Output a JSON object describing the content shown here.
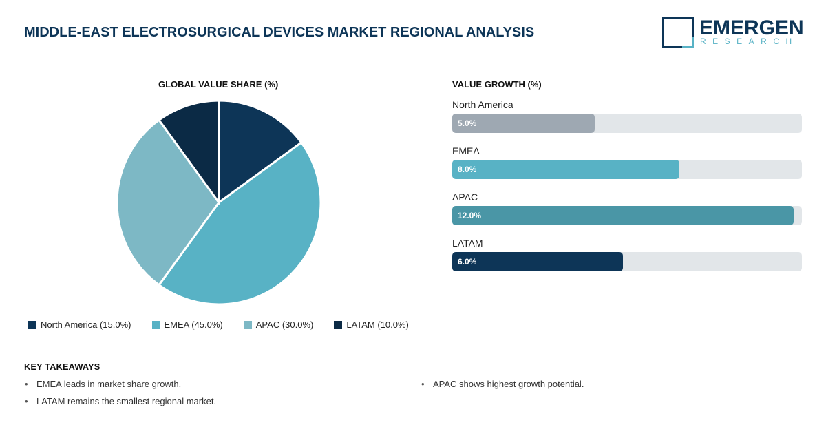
{
  "header": {
    "title": "MIDDLE-EAST ELECTROSURGICAL DEVICES MARKET REGIONAL ANALYSIS",
    "logo_main": "EMERGEN",
    "logo_sub": "RESEARCH"
  },
  "chart_data": [
    {
      "type": "pie",
      "title": "GLOBAL VALUE SHARE (%)",
      "legend_position": "bottom",
      "slices": [
        {
          "name": "North America",
          "value": 15.0,
          "label": "North America (15.0%)",
          "color": "#0d3557"
        },
        {
          "name": "EMEA",
          "value": 45.0,
          "label": "EMEA (45.0%)",
          "color": "#58b2c5"
        },
        {
          "name": "APAC",
          "value": 30.0,
          "label": "APAC (30.0%)",
          "color": "#7db8c5"
        },
        {
          "name": "LATAM",
          "value": 10.0,
          "label": "LATAM (10.0%)",
          "color": "#0b2a45"
        }
      ]
    },
    {
      "type": "bar",
      "orientation": "horizontal",
      "title": "VALUE GROWTH (%)",
      "categories": [
        "North America",
        "EMEA",
        "APAC",
        "LATAM"
      ],
      "values": [
        5.0,
        8.0,
        12.0,
        6.0
      ],
      "labels": [
        "5.0%",
        "8.0%",
        "12.0%",
        "6.0%"
      ],
      "colors": [
        "#9ea8b2",
        "#58b2c5",
        "#4a96a6",
        "#0d3557"
      ]
    }
  ],
  "takeaways": {
    "title": "KEY TAKEAWAYS",
    "items": [
      "EMEA leads in market share growth.",
      "LATAM remains the smallest regional market.",
      "APAC shows highest growth potential."
    ]
  }
}
